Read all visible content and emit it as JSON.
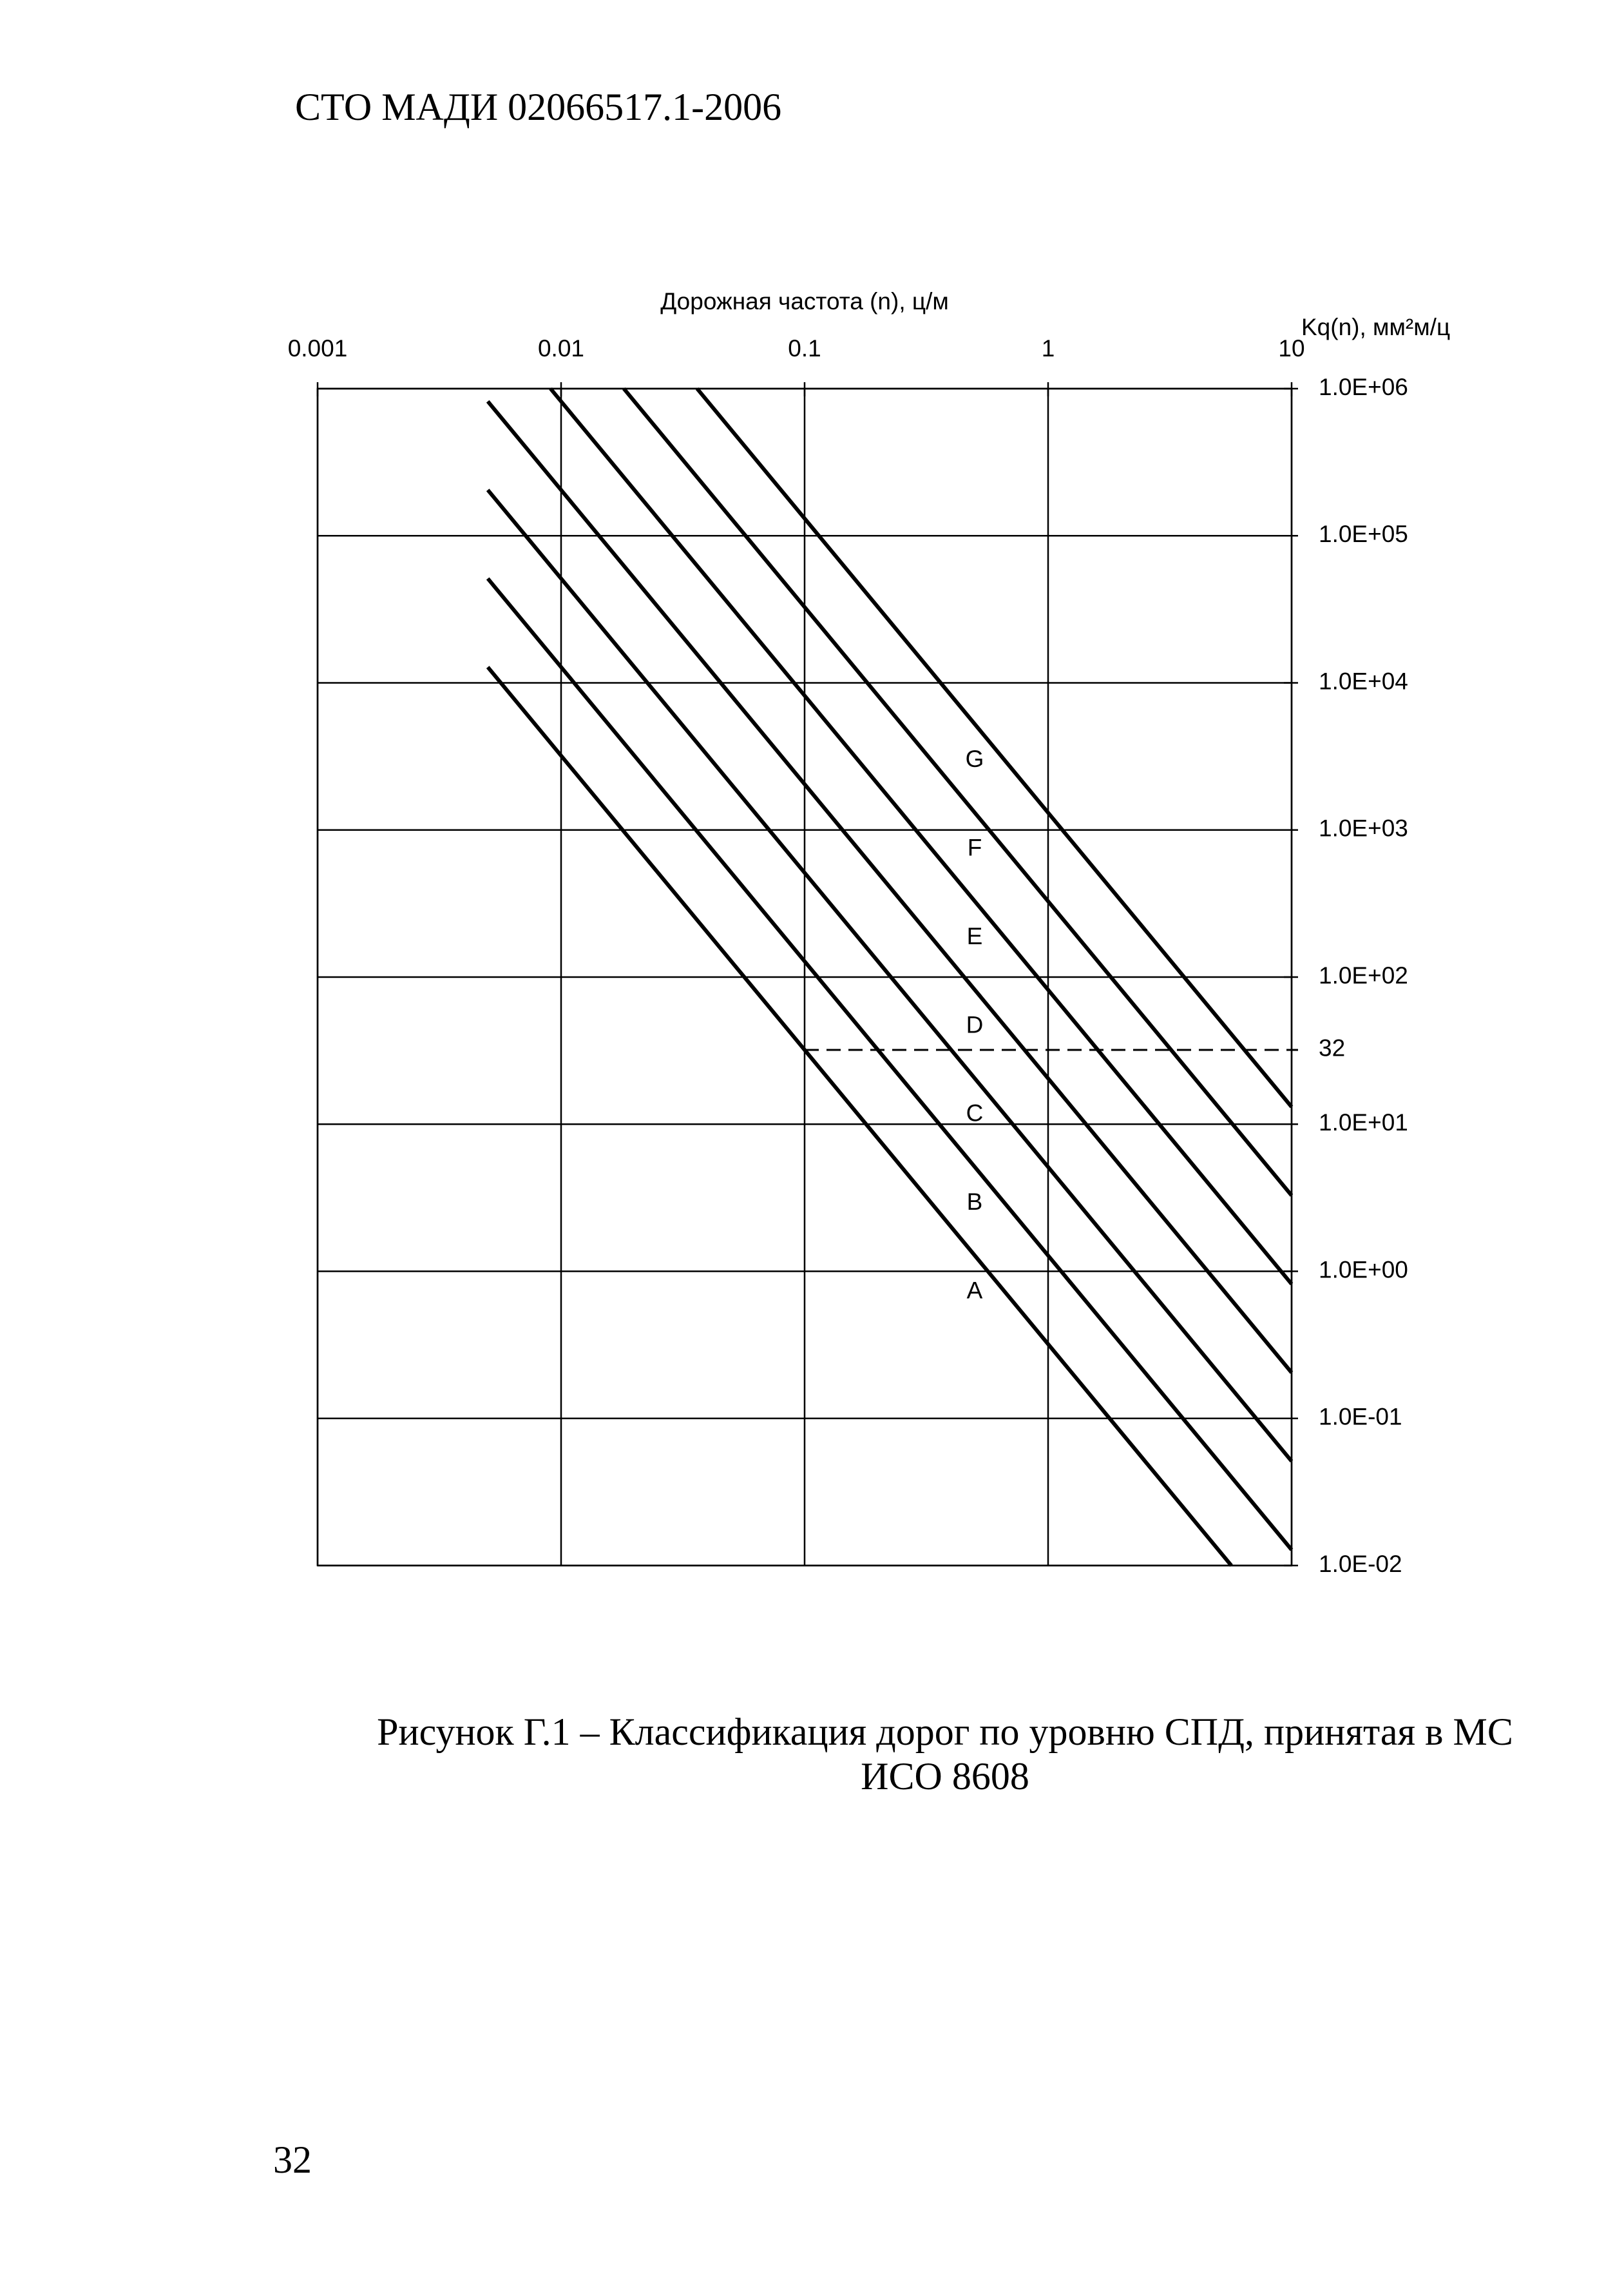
{
  "header": "СТО МАДИ 02066517.1-2006",
  "chart_data": {
    "type": "line",
    "x_label": "Дорожная частота (n), ц/м",
    "y_label": "Kq(n), мм²м/ц",
    "xlog": true,
    "ylog": true,
    "xlim": [
      0.001,
      10
    ],
    "xticks": [
      0.001,
      0.01,
      0.1,
      1,
      10
    ],
    "ylim": [
      0.01,
      1000000
    ],
    "yticks": [
      {
        "value": 1000000,
        "label": "1.0E+06"
      },
      {
        "value": 100000,
        "label": "1.0E+05"
      },
      {
        "value": 10000,
        "label": "1.0E+04"
      },
      {
        "value": 1000,
        "label": "1.0E+03"
      },
      {
        "value": 100,
        "label": "1.0E+02"
      },
      {
        "value": 10,
        "label": "1.0E+01"
      },
      {
        "value": 1,
        "label": "1.0E+00"
      },
      {
        "value": 0.1,
        "label": "1.0E-01"
      },
      {
        "value": 0.01,
        "label": "1.0E-02"
      }
    ],
    "grid": true,
    "color": "#000000",
    "series": [
      {
        "name": "A",
        "x": [
          0.005,
          5.657
        ],
        "values": [
          12800,
          0.01
        ]
      },
      {
        "name": "B",
        "x": [
          0.005,
          10
        ],
        "values": [
          51200,
          0.0128
        ]
      },
      {
        "name": "C",
        "x": [
          0.005,
          10
        ],
        "values": [
          204800,
          0.0512
        ]
      },
      {
        "name": "D",
        "x": [
          0.005,
          10
        ],
        "values": [
          819200,
          0.2048
        ]
      },
      {
        "name": "E",
        "x": [
          0.00905,
          10
        ],
        "values": [
          1000000,
          0.8192
        ]
      },
      {
        "name": "F",
        "x": [
          0.0181,
          10
        ],
        "values": [
          1000000,
          3.2768
        ]
      },
      {
        "name": "G",
        "x": [
          0.0362,
          10
        ],
        "values": [
          1000000,
          13.1072
        ]
      }
    ],
    "reference_line": {
      "y": 32,
      "x_start": 0.1
    }
  },
  "caption": [
    "Рисунок Г.1 – Классификация дорог по уровню СПД, принятая в МС",
    "ИСО 8608"
  ],
  "page_number": "32"
}
